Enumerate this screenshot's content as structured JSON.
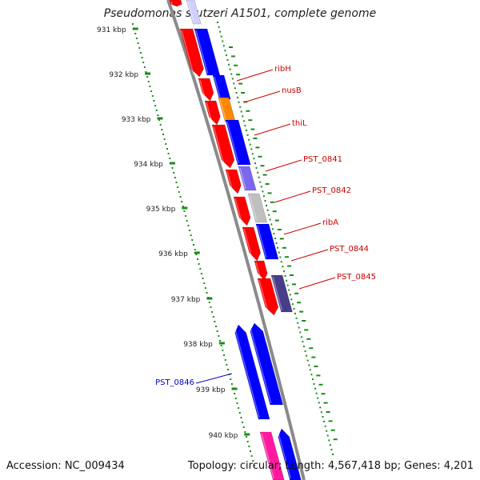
{
  "title": "Pseudomonas stutzeri A1501, complete genome",
  "accession": "Accession: NC_009434",
  "summary": "Topology: circular; Length: 4,567,418 bp; Genes: 4,201",
  "colors": {
    "backbone": "#8a8a8a",
    "scale_dots": "#1b8a1b",
    "forward_label": "#cc0000",
    "reverse_label": "#0000cc"
  },
  "ticks": [
    "931 kbp",
    "932 kbp",
    "933 kbp",
    "934 kbp",
    "935 kbp",
    "936 kbp",
    "937 kbp",
    "938 kbp",
    "939 kbp",
    "940 kbp"
  ],
  "gene_labels": [
    {
      "name": "ribH",
      "color": "#cc0000"
    },
    {
      "name": "nusB",
      "color": "#cc0000"
    },
    {
      "name": "thiL",
      "color": "#cc0000"
    },
    {
      "name": "PST_0841",
      "color": "#cc0000"
    },
    {
      "name": "PST_0842",
      "color": "#cc0000"
    },
    {
      "name": "ribA",
      "color": "#cc0000"
    },
    {
      "name": "PST_0844",
      "color": "#cc0000"
    },
    {
      "name": "PST_0845",
      "color": "#cc0000"
    },
    {
      "name": "PST_0846",
      "color": "#0000cc"
    }
  ]
}
